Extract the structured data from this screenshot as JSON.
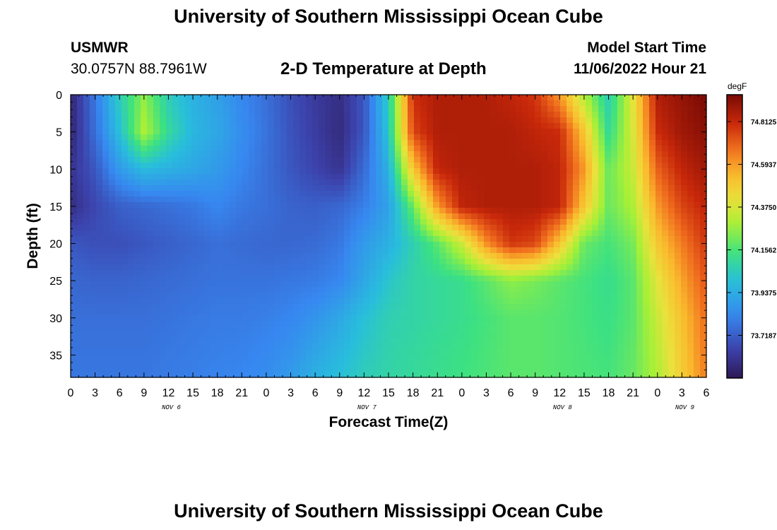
{
  "header": {
    "title": "University of Southern Mississippi Ocean Cube",
    "station_id": "USMWR",
    "station_location": "30.0757N  88.7961W",
    "plot_title": "2-D Temperature at Depth",
    "model_start_label": "Model Start Time",
    "model_start_value": "11/06/2022 Hour 21",
    "footer_title": "University of Southern Mississippi Ocean Cube"
  },
  "chart_data": {
    "type": "heatmap",
    "xlabel": "Forecast Time(Z)",
    "ylabel": "Depth (ft)",
    "x_range_hours": [
      0,
      78
    ],
    "y_range_ft": [
      0,
      38
    ],
    "y_ticks": [
      0,
      5,
      10,
      15,
      20,
      25,
      30,
      35
    ],
    "x_tick_labels": [
      "0",
      "3",
      "6",
      "9",
      "12",
      "15",
      "18",
      "21",
      "0",
      "3",
      "6",
      "9",
      "12",
      "15",
      "18",
      "21",
      "0",
      "3",
      "6",
      "9",
      "12",
      "15",
      "18",
      "21",
      "0",
      "3",
      "6"
    ],
    "day_labels": [
      {
        "text": "NOV 6",
        "hour": 12
      },
      {
        "text": "NOV 7",
        "hour": 36
      },
      {
        "text": "NOV 8",
        "hour": 60
      },
      {
        "text": "NOV 9",
        "hour": 75
      }
    ],
    "colorbar": {
      "unit": "degF",
      "min": 73.5,
      "max": 74.95,
      "labels": [
        "74.8125",
        "74.5937",
        "74.3750",
        "74.1562",
        "73.9375",
        "73.7187"
      ]
    },
    "depth_levels_ft": [
      0,
      5,
      10,
      15,
      20,
      25,
      30,
      38
    ],
    "time_nodes_hours": [
      0,
      3,
      6,
      9,
      12,
      15,
      18,
      21,
      24,
      27,
      30,
      33,
      36,
      39,
      42,
      45,
      48,
      51,
      54,
      57,
      60,
      63,
      66,
      69,
      72,
      75,
      78
    ],
    "temperature_degF": [
      [
        73.55,
        73.78,
        74.05,
        74.25,
        74.05,
        73.95,
        73.9,
        73.82,
        73.76,
        73.68,
        73.62,
        73.58,
        73.7,
        74.05,
        74.8,
        74.85,
        74.85,
        74.85,
        74.82,
        74.78,
        74.6,
        74.3,
        74.05,
        74.4,
        74.85,
        74.9,
        74.95
      ],
      [
        73.55,
        73.76,
        74.0,
        74.3,
        74.1,
        73.97,
        73.92,
        73.84,
        73.77,
        73.69,
        73.63,
        73.57,
        73.7,
        74.02,
        74.75,
        74.85,
        74.85,
        74.85,
        74.85,
        74.82,
        74.8,
        74.5,
        74.1,
        74.38,
        74.8,
        74.88,
        74.92
      ],
      [
        73.6,
        73.7,
        73.88,
        73.98,
        73.95,
        73.92,
        73.88,
        73.82,
        73.76,
        73.7,
        73.65,
        73.6,
        73.75,
        73.95,
        74.5,
        74.82,
        74.85,
        74.85,
        74.85,
        74.85,
        74.82,
        74.6,
        74.2,
        74.35,
        74.7,
        74.82,
        74.88
      ],
      [
        73.58,
        73.66,
        73.72,
        73.74,
        73.76,
        73.78,
        73.82,
        73.78,
        73.76,
        73.73,
        73.72,
        73.74,
        73.8,
        73.9,
        74.2,
        74.6,
        74.82,
        74.85,
        74.85,
        74.85,
        74.82,
        74.5,
        74.2,
        74.3,
        74.6,
        74.75,
        74.82
      ],
      [
        73.7,
        73.68,
        73.68,
        73.7,
        73.72,
        73.74,
        73.76,
        73.75,
        73.74,
        73.74,
        73.75,
        73.78,
        73.88,
        73.95,
        74.06,
        74.18,
        74.35,
        74.62,
        74.78,
        74.75,
        74.5,
        74.2,
        74.15,
        74.22,
        74.5,
        74.65,
        74.78
      ],
      [
        73.74,
        73.73,
        73.73,
        73.74,
        73.75,
        73.76,
        73.77,
        73.77,
        73.77,
        73.78,
        73.79,
        73.82,
        73.92,
        74.02,
        74.08,
        74.1,
        74.12,
        74.18,
        74.25,
        74.22,
        74.18,
        74.15,
        74.12,
        74.18,
        74.4,
        74.58,
        74.72
      ],
      [
        73.76,
        73.76,
        73.76,
        73.76,
        73.77,
        73.78,
        73.79,
        73.79,
        73.8,
        73.82,
        73.86,
        73.92,
        74.0,
        74.06,
        74.08,
        74.1,
        74.12,
        74.15,
        74.18,
        74.18,
        74.17,
        74.15,
        74.13,
        74.18,
        74.35,
        74.52,
        74.68
      ],
      [
        73.78,
        73.78,
        73.78,
        73.78,
        73.79,
        73.8,
        73.81,
        73.82,
        73.84,
        73.88,
        73.95,
        74.0,
        74.05,
        74.08,
        74.1,
        74.12,
        74.14,
        74.16,
        74.18,
        74.18,
        74.17,
        74.16,
        74.15,
        74.2,
        74.3,
        74.48,
        74.65
      ]
    ]
  }
}
